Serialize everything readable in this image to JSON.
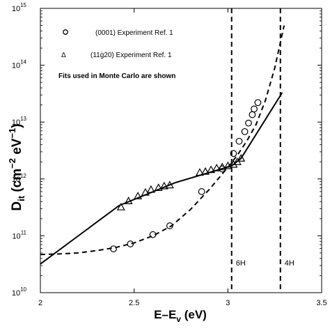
{
  "chart_data": {
    "type": "scatter",
    "xlabel_main": "E–E",
    "xlabel_sub": "v",
    "xlabel_unit": " (eV)",
    "ylabel_main": "D",
    "ylabel_sub": "it",
    "ylabel_unit_open": " (cm",
    "ylabel_exp1": "−2",
    "ylabel_unit_mid": " eV",
    "ylabel_exp2": "−1",
    "ylabel_unit_close": ")",
    "xlim": [
      2,
      3.5
    ],
    "ylim": [
      10000000000,
      1000000000000000
    ],
    "yscale": "log",
    "x_ticks": [
      2,
      2.5,
      3,
      3.5
    ],
    "x_tick_labels": [
      "2",
      "2.5",
      "3",
      "3.5"
    ],
    "y_ticks": [
      {
        "value": 10000000000,
        "base": "10",
        "exp": "10"
      },
      {
        "value": 100000000000,
        "base": "10",
        "exp": "11"
      },
      {
        "value": 1000000000000,
        "base": "10",
        "exp": "12"
      },
      {
        "value": 10000000000000,
        "base": "10",
        "exp": "13"
      },
      {
        "value": 100000000000000,
        "base": "10",
        "exp": "14"
      },
      {
        "value": 1000000000000000,
        "base": "10",
        "exp": "15"
      }
    ],
    "legend": {
      "position": "top-left",
      "entries": [
        {
          "marker": "circle",
          "symbol": "o",
          "label": "(0001) Experiment Ref. 1"
        },
        {
          "marker": "triangle",
          "symbol": "Δ",
          "label": "(11ġ20) Experiment Ref. 1"
        }
      ],
      "note": "Fits used in Monte Carlo are shown"
    },
    "series": [
      {
        "marker": "circle",
        "x": [
          2.39,
          2.48,
          2.6,
          2.69,
          2.86,
          2.97,
          3.03,
          3.06,
          3.09,
          3.11,
          3.13,
          3.14,
          3.16
        ],
        "y": [
          59000000000,
          72000000000,
          105000000000,
          150000000000,
          600000000000,
          1500000000000,
          2800000000000,
          4600000000000,
          6800000000000,
          9600000000000,
          13500000000000,
          17000000000000,
          22000000000000
        ]
      },
      {
        "marker": "triangle",
        "x": [
          2.43,
          2.47,
          2.52,
          2.56,
          2.59,
          2.63,
          2.66,
          2.69,
          2.85,
          2.88,
          2.91,
          2.94,
          2.97,
          3.0,
          3.03,
          3.05,
          3.07
        ],
        "y": [
          320000000000,
          410000000000,
          500000000000,
          580000000000,
          650000000000,
          700000000000,
          750000000000,
          780000000000,
          1300000000000,
          1350000000000,
          1450000000000,
          1550000000000,
          1620000000000,
          1700000000000,
          1800000000000,
          2000000000000,
          2300000000000
        ]
      },
      {
        "line": "solid",
        "x": [
          2.0,
          2.42,
          2.72,
          3.02,
          3.07,
          3.29
        ],
        "y": [
          32000000000,
          340000000000,
          860000000000,
          1700000000000,
          2300000000000,
          33000000000000
        ]
      },
      {
        "line": "dashed",
        "x": [
          2.0,
          2.1,
          2.2,
          2.3,
          2.4,
          2.5,
          2.6,
          2.7,
          2.8,
          2.9,
          3.0,
          3.05,
          3.1,
          3.15,
          3.2,
          3.25,
          3.3
        ],
        "y": [
          47000000000,
          48000000000,
          50000000000,
          55000000000,
          62000000000,
          75000000000,
          100000000000,
          150000000000,
          290000000000,
          650000000000,
          1600000000000,
          2600000000000,
          4600000000000,
          9000000000000,
          24000000000000,
          90000000000000,
          500000000000000
        ]
      }
    ],
    "vlines": [
      {
        "x": 3.02,
        "label": "6H",
        "style": "dashed"
      },
      {
        "x": 3.28,
        "label": "4H",
        "style": "dashed"
      }
    ]
  }
}
